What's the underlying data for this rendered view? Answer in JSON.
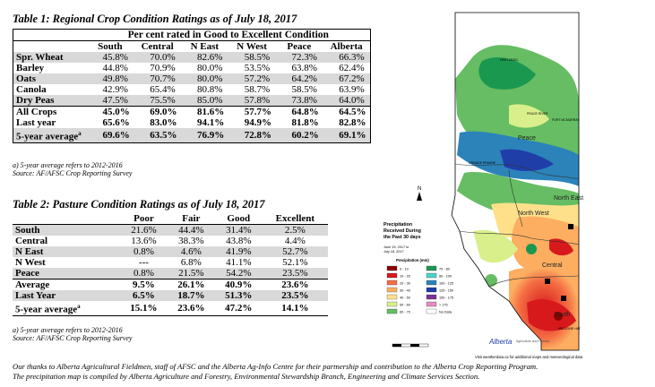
{
  "table1": {
    "caption": "Table 1: Regional Crop Condition Ratings as of July 18, 2017",
    "header_span": "Per cent rated in Good to Excellent Condition",
    "columns": [
      "South",
      "Central",
      "N East",
      "N West",
      "Peace",
      "Alberta"
    ],
    "rows": [
      {
        "label": "Spr. Wheat",
        "values": [
          "45.8%",
          "70.0%",
          "82.6%",
          "58.5%",
          "72.3%",
          "66.3%"
        ]
      },
      {
        "label": "Barley",
        "values": [
          "44.8%",
          "70.9%",
          "80.0%",
          "53.5%",
          "63.8%",
          "62.4%"
        ]
      },
      {
        "label": "Oats",
        "values": [
          "49.8%",
          "70.7%",
          "80.0%",
          "57.2%",
          "64.2%",
          "67.2%"
        ]
      },
      {
        "label": "Canola",
        "values": [
          "42.9%",
          "65.4%",
          "80.8%",
          "58.7%",
          "58.5%",
          "63.9%"
        ]
      },
      {
        "label": "Dry Peas",
        "values": [
          "47.5%",
          "75.5%",
          "85.0%",
          "57.8%",
          "73.8%",
          "64.0%"
        ]
      },
      {
        "label": "All Crops",
        "values": [
          "45.0%",
          "69.0%",
          "81.6%",
          "57.7%",
          "64.8%",
          "64.5%"
        ]
      },
      {
        "label": "Last year",
        "values": [
          "65.6%",
          "83.0%",
          "94.1%",
          "94.9%",
          "81.8%",
          "82.8%"
        ]
      },
      {
        "label": "5-year average",
        "sup": "a",
        "values": [
          "69.6%",
          "63.5%",
          "76.9%",
          "72.8%",
          "60.2%",
          "69.1%"
        ]
      }
    ],
    "note1": "a) 5-year average refers to 2012-2016",
    "note2": "Source: AF/AFSC Crop Reporting Survey"
  },
  "table2": {
    "caption": "Table 2: Pasture Condition Ratings as of July 18, 2017",
    "columns": [
      "Poor",
      "Fair",
      "Good",
      "Excellent"
    ],
    "rows": [
      {
        "label": "South",
        "values": [
          "21.6%",
          "44.4%",
          "31.4%",
          "2.5%"
        ]
      },
      {
        "label": "Central",
        "values": [
          "13.6%",
          "38.3%",
          "43.8%",
          "4.4%"
        ]
      },
      {
        "label": "N East",
        "values": [
          "0.8%",
          "4.6%",
          "41.9%",
          "52.7%"
        ]
      },
      {
        "label": "N West",
        "values": [
          "---",
          "6.8%",
          "41.1%",
          "52.1%"
        ]
      },
      {
        "label": "Peace",
        "values": [
          "0.8%",
          "21.5%",
          "54.2%",
          "23.5%"
        ]
      },
      {
        "label": "Average",
        "values": [
          "9.5%",
          "26.1%",
          "40.9%",
          "23.6%"
        ]
      },
      {
        "label": "Last Year",
        "values": [
          "6.5%",
          "18.7%",
          "51.3%",
          "23.5%"
        ]
      },
      {
        "label": "5-year average",
        "sup": "a",
        "values": [
          "15.1%",
          "23.6%",
          "47.2%",
          "14.1%"
        ]
      }
    ],
    "note1": "a) 5-year average refers to 2012-2016",
    "note2": "Source: AF/AFSC Crop Reporting Survey"
  },
  "footer": {
    "line1": "Our thanks to Alberta Agricultural Fieldmen, staff of AFSC and the Alberta Ag-Info Centre for their partnership and contribution to the Alberta Crop Reporting Program.",
    "line2": "The precipitation map is compiled by Alberta Agriculture and Forestry, Environmental Stewardship Branch, Engineering and Climate Services Section."
  },
  "map": {
    "title_line1": "Precipitation",
    "title_line2": "Received During",
    "title_line3": "the Past 30 days",
    "date_line1": "June 19, 2017 to",
    "date_line2": "July 18, 2017",
    "legend_title": "Precipitation (mm)",
    "legend": [
      {
        "label": "0 - 10",
        "color": "#8b0000"
      },
      {
        "label": "10 - 20",
        "color": "#d7191c"
      },
      {
        "label": "20 - 30",
        "color": "#f46d43"
      },
      {
        "label": "30 - 40",
        "color": "#fdae61"
      },
      {
        "label": "40 - 50",
        "color": "#fee08b"
      },
      {
        "label": "50 - 60",
        "color": "#d9ef8b"
      },
      {
        "label": "60 - 70",
        "color": "#66bd63"
      },
      {
        "label": "70 - 80",
        "color": "#1a9850"
      },
      {
        "label": "80 - 100",
        "color": "#4dd2c8"
      },
      {
        "label": "100 - 125",
        "color": "#2b83ba"
      },
      {
        "label": "125 - 150",
        "color": "#1f3ea8"
      },
      {
        "label": "150 - 175",
        "color": "#7b3294"
      },
      {
        "label": "> 175",
        "color": "#e78ac3"
      },
      {
        "label": "No Data",
        "color": "#ffffff"
      }
    ],
    "region_labels": [
      "Peace",
      "North West",
      "North East",
      "Central",
      "South"
    ],
    "place_labels": [
      "PEACE RIVER",
      "FORT MCMURRAY",
      "GRANDE PRAIRIE",
      "HIGH LEVEL",
      "MEDICINE HAT"
    ],
    "link_text": "Visit weatherdata.ca for additional maps and meteorological data",
    "logo_text": "Alberta",
    "logo_sub": "Agriculture and Forestry",
    "north_arrow": "N",
    "colors": {
      "background_land": "#ffffff",
      "border": "#000000"
    }
  }
}
